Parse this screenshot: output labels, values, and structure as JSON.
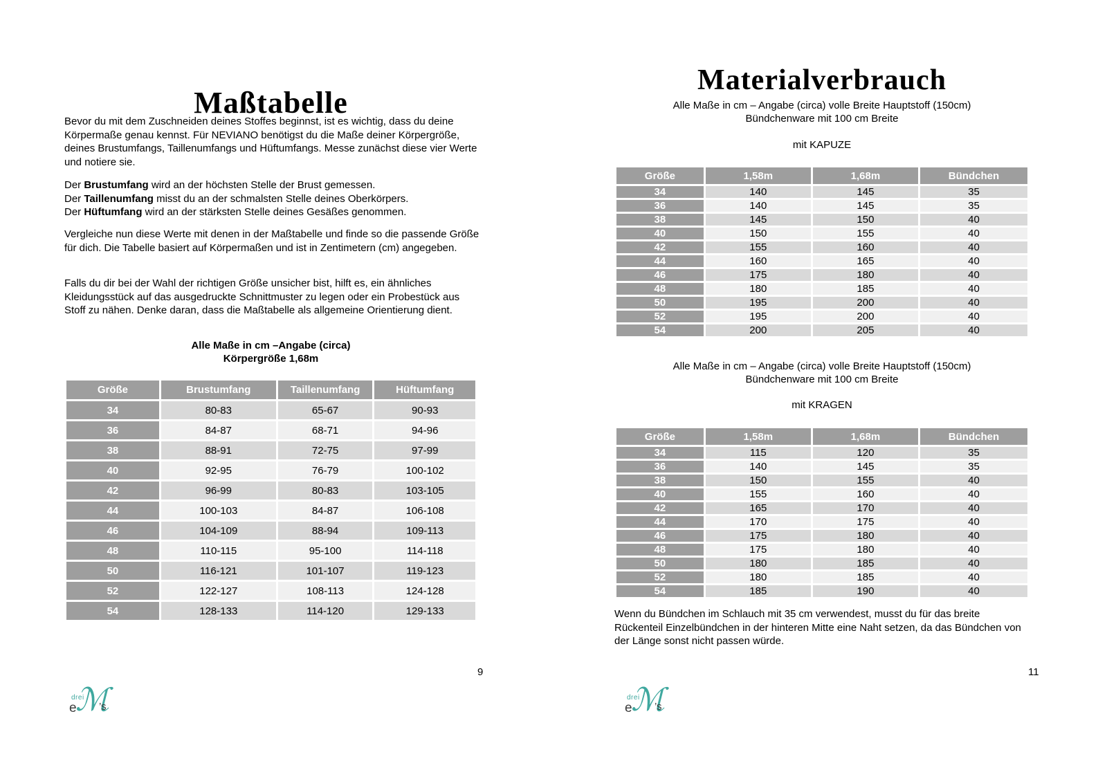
{
  "colors": {
    "teal": "#3FA89F",
    "table_header_bg": "#9E9E9E",
    "row_dark": "#D9D9D9",
    "row_light": "#F0F0F0"
  },
  "logo": {
    "drei": "drei",
    "e": "e",
    "m": "ℳ",
    "s": "’s"
  },
  "left": {
    "title": "Maßtabelle",
    "intro": "Bevor du mit dem Zuschneiden deines Stoffes beginnst, ist es wichtig, dass du deine Körpermaße genau kennst. Für NEVIANO benötigst du die Maße deiner Körpergröße, deines Brustumfangs, Taillenumfangs und Hüftumfangs. Messe zunächst diese vier Werte und notiere sie.",
    "measure_lines": [
      {
        "pre": "Der ",
        "bold": "Brustumfang",
        "post": " wird an der höchsten Stelle der Brust gemessen."
      },
      {
        "pre": "Der ",
        "bold": "Taillenumfang",
        "post": " misst du an der schmalsten Stelle deines Oberkörpers."
      },
      {
        "pre": "Der ",
        "bold": "Hüftumfang",
        "post": " wird an der stärksten Stelle deines Gesäßes genommen."
      }
    ],
    "compare": "Vergleiche nun diese Werte mit denen in der Maßtabelle und finde so die passende Größe für dich. Die Tabelle basiert auf Körpermaßen und ist in Zentimetern (cm) angegeben.",
    "hint": "Falls du dir bei der Wahl der richtigen Größe unsicher bist, hilft es, ein ähnliches Kleidungsstück auf das ausgedruckte Schnittmuster zu legen oder ein Probestück aus Stoff zu nähen. Denke daran, dass die Maßtabelle als allgemeine Orientierung dient.",
    "note_line1": "Alle Maße in cm –Angabe (circa)",
    "note_line2": "Körpergröße 1,68m",
    "size_table": {
      "headers": [
        "Größe",
        "Brustumfang",
        "Taillenumfang",
        "Hüftumfang"
      ],
      "rows": [
        [
          "34",
          "80-83",
          "65-67",
          "90-93"
        ],
        [
          "36",
          "84-87",
          "68-71",
          "94-96"
        ],
        [
          "38",
          "88-91",
          "72-75",
          "97-99"
        ],
        [
          "40",
          "92-95",
          "76-79",
          "100-102"
        ],
        [
          "42",
          "96-99",
          "80-83",
          "103-105"
        ],
        [
          "44",
          "100-103",
          "84-87",
          "106-108"
        ],
        [
          "46",
          "104-109",
          "88-94",
          "109-113"
        ],
        [
          "48",
          "110-115",
          "95-100",
          "114-118"
        ],
        [
          "50",
          "116-121",
          "101-107",
          "119-123"
        ],
        [
          "52",
          "122-127",
          "108-113",
          "124-128"
        ],
        [
          "54",
          "128-133",
          "114-120",
          "129-133"
        ]
      ]
    },
    "page_number": "9"
  },
  "right": {
    "title": "Materialverbrauch",
    "kapuze": {
      "note_line1": "Alle Maße in cm – Angabe (circa) volle Breite Hauptstoff (150cm)",
      "note_line2": "Bündchenware mit 100 cm Breite",
      "section_label": "mit KAPUZE",
      "table": {
        "headers": [
          "Größe",
          "1,58m",
          "1,68m",
          "Bündchen"
        ],
        "rows": [
          [
            "34",
            "140",
            "145",
            "35"
          ],
          [
            "36",
            "140",
            "145",
            "35"
          ],
          [
            "38",
            "145",
            "150",
            "40"
          ],
          [
            "40",
            "150",
            "155",
            "40"
          ],
          [
            "42",
            "155",
            "160",
            "40"
          ],
          [
            "44",
            "160",
            "165",
            "40"
          ],
          [
            "46",
            "175",
            "180",
            "40"
          ],
          [
            "48",
            "180",
            "185",
            "40"
          ],
          [
            "50",
            "195",
            "200",
            "40"
          ],
          [
            "52",
            "195",
            "200",
            "40"
          ],
          [
            "54",
            "200",
            "205",
            "40"
          ]
        ]
      }
    },
    "kragen": {
      "note_line1": "Alle Maße in cm – Angabe (circa) volle Breite Hauptstoff (150cm)",
      "note_line2": "Bündchenware mit 100 cm Breite",
      "section_label": "mit KRAGEN",
      "table": {
        "headers": [
          "Größe",
          "1,58m",
          "1,68m",
          "Bündchen"
        ],
        "rows": [
          [
            "34",
            "115",
            "120",
            "35"
          ],
          [
            "36",
            "140",
            "145",
            "35"
          ],
          [
            "38",
            "150",
            "155",
            "40"
          ],
          [
            "40",
            "155",
            "160",
            "40"
          ],
          [
            "42",
            "165",
            "170",
            "40"
          ],
          [
            "44",
            "170",
            "175",
            "40"
          ],
          [
            "46",
            "175",
            "180",
            "40"
          ],
          [
            "48",
            "175",
            "180",
            "40"
          ],
          [
            "50",
            "180",
            "185",
            "40"
          ],
          [
            "52",
            "180",
            "185",
            "40"
          ],
          [
            "54",
            "185",
            "190",
            "40"
          ]
        ]
      }
    },
    "footer_note": "Wenn du Bündchen im Schlauch mit 35 cm verwendest, musst du für das breite Rückenteil Einzelbündchen in der hinteren Mitte eine Naht setzen, da das Bündchen von der Länge sonst nicht passen würde.",
    "page_number": "11"
  }
}
